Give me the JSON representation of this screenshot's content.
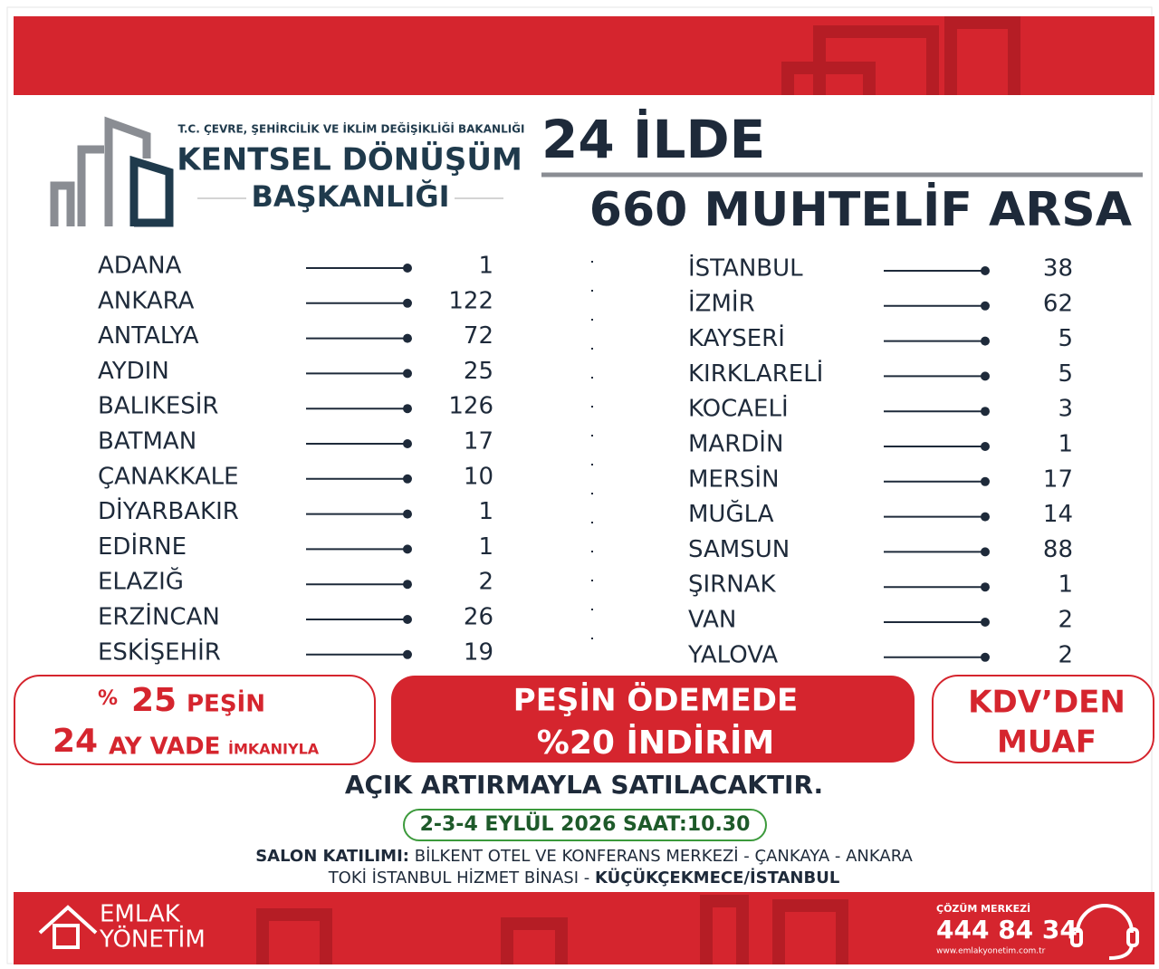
{
  "header": {
    "ministry": "T.C. ÇEVRE, ŞEHİRCİLİK VE İKLİM DEĞİŞİKLİĞİ BAKANLIĞI",
    "org_line1": "KENTSEL DÖNÜŞÜM",
    "org_line2": "BAŞKANLIĞI",
    "headline1": "24 İLDE",
    "headline2": "660 MUHTELİF ARSA"
  },
  "lists": [
    {
      "rows": [
        [
          "ADANA",
          1
        ],
        [
          "ANKARA",
          122
        ],
        [
          "ANTALYA",
          72
        ],
        [
          "AYDIN",
          25
        ],
        [
          "BALIKESİR",
          126
        ],
        [
          "BATMAN",
          17
        ],
        [
          "ÇANAKKALE",
          10
        ],
        [
          "DİYARBAKIR",
          1
        ],
        [
          "EDİRNE",
          1
        ],
        [
          "ELAZIĞ",
          2
        ],
        [
          "ERZİNCAN",
          26
        ],
        [
          "ESKİŞEHİR",
          19
        ]
      ]
    },
    {
      "rows": [
        [
          "İSTANBUL",
          38
        ],
        [
          "İZMİR",
          62
        ],
        [
          "KAYSERİ",
          5
        ],
        [
          "KIRKLARELİ",
          5
        ],
        [
          "KOCAELİ",
          3
        ],
        [
          "MARDİN",
          1
        ],
        [
          "MERSİN",
          17
        ],
        [
          "MUĞLA",
          14
        ],
        [
          "SAMSUN",
          88
        ],
        [
          "ŞIRNAK",
          1
        ],
        [
          "VAN",
          2
        ],
        [
          "YALOVA",
          2
        ]
      ]
    }
  ],
  "offers": {
    "left": {
      "percent_sign": "%",
      "down_payment": "25",
      "down_payment_label": "PEŞİN",
      "months": "24",
      "months_label": "AY VADE",
      "suffix": "İMKANIYLA"
    },
    "middle": {
      "line1": "PEŞİN ÖDEMEDE",
      "line2": "%20 İNDİRİM"
    },
    "right": {
      "line1": "KDV’DEN",
      "line2": "MUAF"
    }
  },
  "auction": {
    "title": "AÇIK ARTIRMAYLA SATILACAKTIR.",
    "date": "2-3-4 EYLÜL 2026 SAAT:10.30",
    "salon_label": "SALON KATILIMI:",
    "salon_place1": "BİLKENT OTEL VE KONFERANS MERKEZİ - ÇANKAYA - ANKARA",
    "salon_place2": "TOKİ İSTANBUL HİZMET BİNASI -",
    "salon_place2_bold": "KÜÇÜKÇEKMECE/İSTANBUL"
  },
  "brand": {
    "line1": "EMLAK",
    "line2": "YÖNETİM"
  },
  "contact": {
    "label": "ÇÖZÜM MERKEZİ",
    "phone": "444 84 34",
    "website": "www.emlakyonetim.com.tr"
  }
}
